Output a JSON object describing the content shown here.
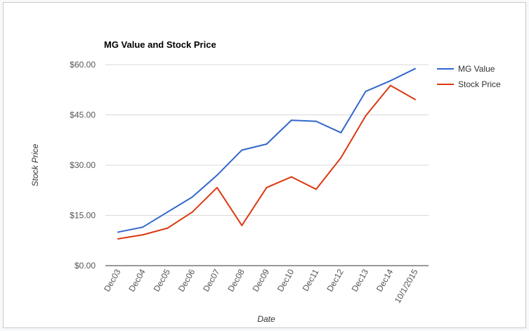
{
  "chart_data": {
    "type": "line",
    "title": "MG Value and Stock Price",
    "xlabel": "Date",
    "ylabel": "Stock Price",
    "categories": [
      "Dec03",
      "Dec04",
      "Dec05",
      "Dec06",
      "Dec07",
      "Dec08",
      "Dec09",
      "Dec10",
      "Dec11",
      "Dec12",
      "Dec13",
      "Dec14",
      "10/1/2015"
    ],
    "yticks": [
      "$0.00",
      "$15.00",
      "$30.00",
      "$45.00",
      "$60.00"
    ],
    "ylim": [
      0,
      60
    ],
    "grid": true,
    "legend_position": "right",
    "series": [
      {
        "name": "MG Value",
        "color": "#3366cc",
        "values": [
          10.0,
          11.5,
          16.0,
          20.5,
          27.0,
          34.5,
          36.3,
          43.4,
          43.1,
          39.7,
          52.0,
          55.2,
          58.8
        ]
      },
      {
        "name": "Stock Price",
        "color": "#dc3912",
        "values": [
          8.0,
          9.2,
          11.2,
          16.0,
          23.3,
          12.0,
          23.3,
          26.5,
          22.8,
          32.2,
          44.7,
          53.8,
          49.6
        ]
      }
    ]
  }
}
